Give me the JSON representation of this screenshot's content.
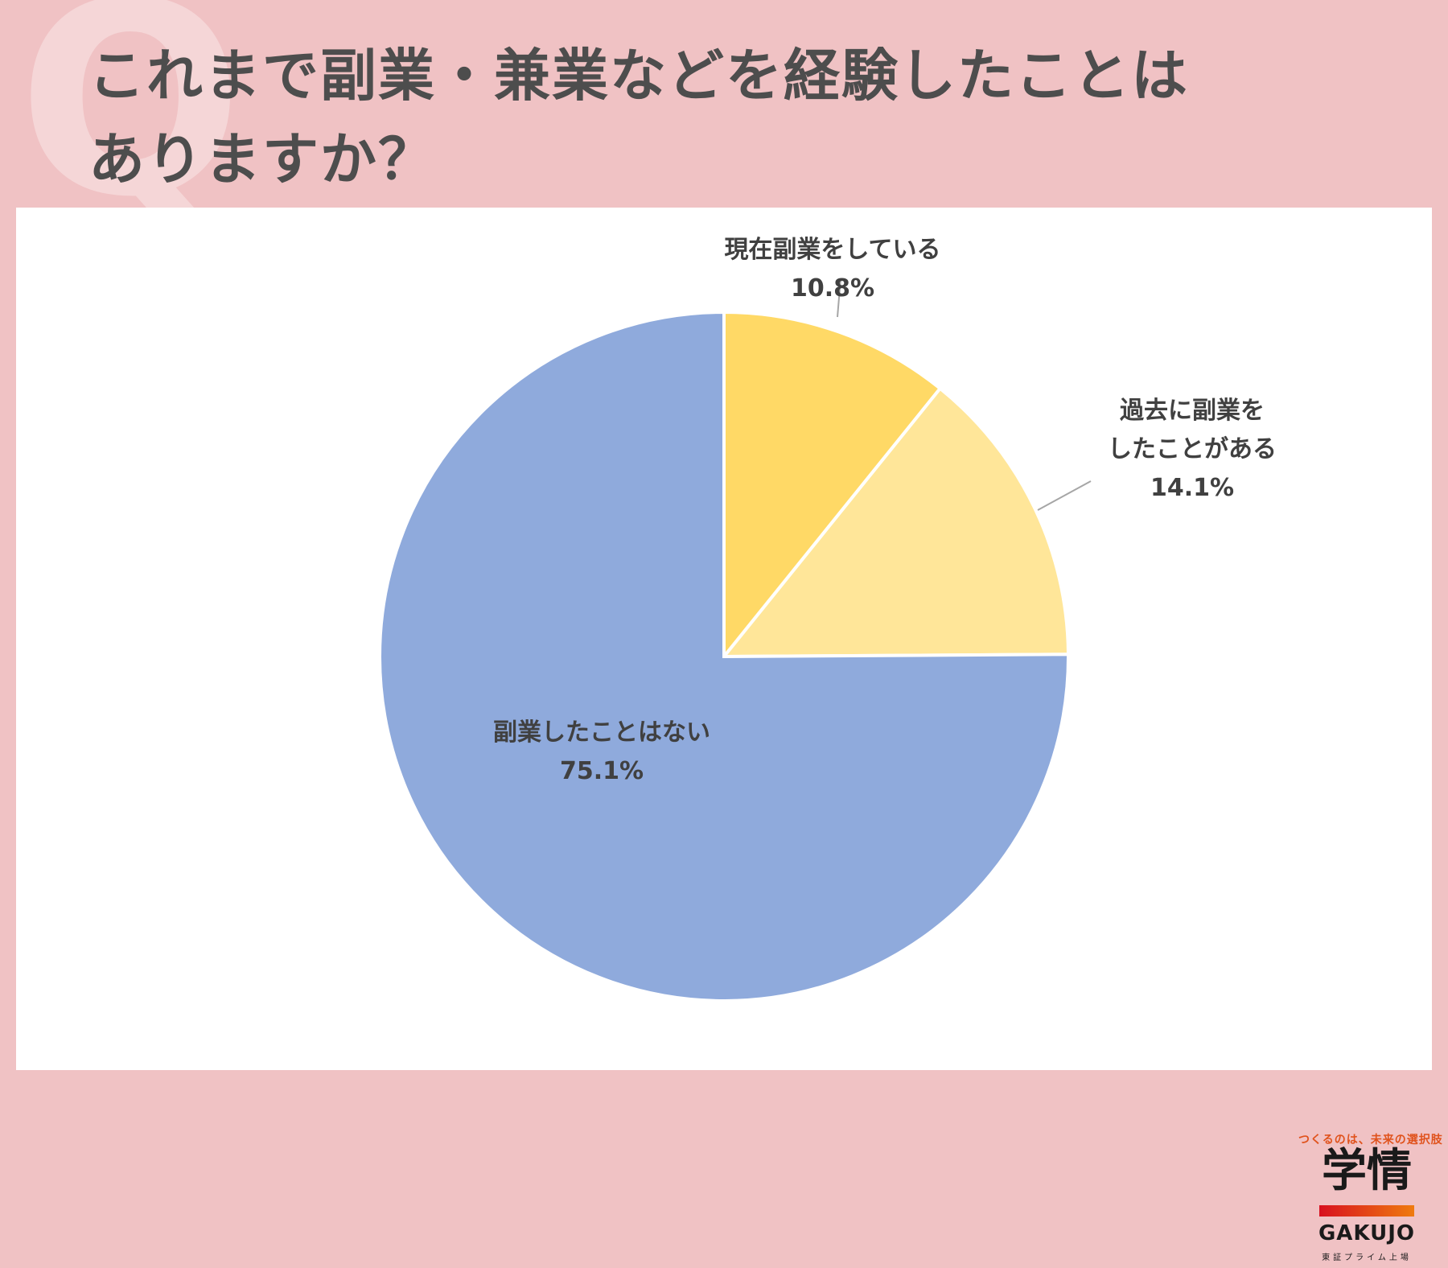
{
  "header": {
    "watermark_letter": "Q",
    "title_line1": "これまで副業・兼業などを経験したことは",
    "title_line2": "ありますか？"
  },
  "chart_data": {
    "type": "pie",
    "title": "これまで副業・兼業などを経験したことはありますか？",
    "start_angle_deg": 0,
    "direction": "clockwise",
    "slices": [
      {
        "label_lines": [
          "現在副業をしている"
        ],
        "value": 10.8,
        "value_label": "10.8%",
        "color": "#ffd966"
      },
      {
        "label_lines": [
          "過去に副業を",
          "したことがある"
        ],
        "value": 14.1,
        "value_label": "14.1%",
        "color": "#ffe699"
      },
      {
        "label_lines": [
          "副業したことはない"
        ],
        "value": 75.1,
        "value_label": "75.1%",
        "color": "#8faadc"
      }
    ]
  },
  "logo": {
    "tagline": "つくるのは、未来の選択肢",
    "name_ja": "学情",
    "name_en": "GAKUJO",
    "sub": "東証プライム上場"
  }
}
